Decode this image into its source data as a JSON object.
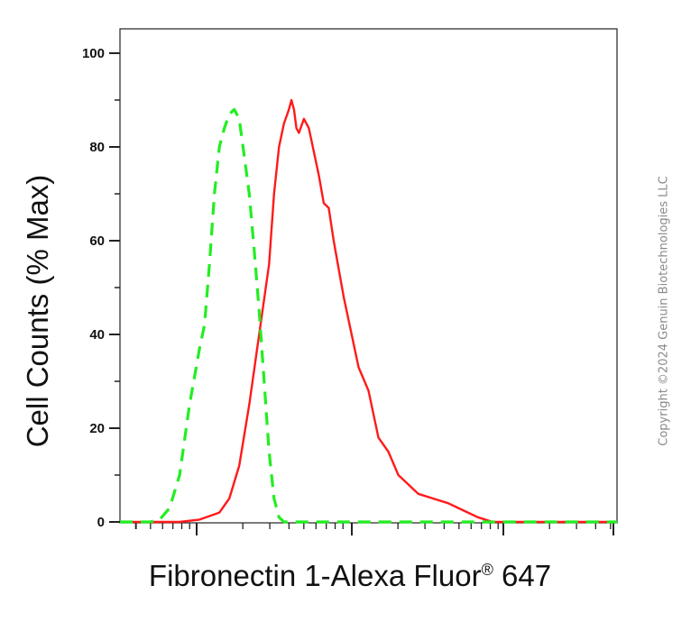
{
  "chart_data": {
    "type": "line",
    "title": "",
    "xlabel": "Fibronectin 1-Alexa Fluor",
    "xlabel_reg": "®",
    "xlabel_suffix": " 647",
    "ylabel": "Cell Counts (% Max)",
    "ylim": [
      0,
      100
    ],
    "y_ticks": [
      0,
      20,
      40,
      60,
      80,
      100
    ],
    "x_scale": "log",
    "x_tick_labels": "none",
    "grid": false,
    "legend": "none",
    "series": [
      {
        "color": "#ff1a1a",
        "style": "solid",
        "points": [
          [
            0.0,
            0
          ],
          [
            0.12,
            0
          ],
          [
            0.16,
            0.5
          ],
          [
            0.2,
            2
          ],
          [
            0.22,
            5
          ],
          [
            0.24,
            12
          ],
          [
            0.26,
            25
          ],
          [
            0.28,
            40
          ],
          [
            0.3,
            55
          ],
          [
            0.31,
            70
          ],
          [
            0.32,
            80
          ],
          [
            0.33,
            85
          ],
          [
            0.34,
            88
          ],
          [
            0.345,
            90
          ],
          [
            0.35,
            88
          ],
          [
            0.355,
            84
          ],
          [
            0.36,
            83
          ],
          [
            0.37,
            86
          ],
          [
            0.38,
            84
          ],
          [
            0.39,
            79
          ],
          [
            0.4,
            74
          ],
          [
            0.41,
            68
          ],
          [
            0.42,
            67
          ],
          [
            0.43,
            60
          ],
          [
            0.45,
            48
          ],
          [
            0.47,
            38
          ],
          [
            0.48,
            33
          ],
          [
            0.5,
            28
          ],
          [
            0.51,
            23
          ],
          [
            0.52,
            18
          ],
          [
            0.54,
            15
          ],
          [
            0.56,
            10
          ],
          [
            0.58,
            8
          ],
          [
            0.6,
            6
          ],
          [
            0.63,
            5
          ],
          [
            0.66,
            4
          ],
          [
            0.69,
            2.5
          ],
          [
            0.72,
            1
          ],
          [
            0.75,
            0
          ],
          [
            1.0,
            0
          ]
        ]
      },
      {
        "color": "#22ee22",
        "style": "dashed",
        "points": [
          [
            0.0,
            0
          ],
          [
            0.06,
            0
          ],
          [
            0.08,
            0.5
          ],
          [
            0.1,
            3
          ],
          [
            0.12,
            10
          ],
          [
            0.14,
            25
          ],
          [
            0.16,
            37
          ],
          [
            0.17,
            42
          ],
          [
            0.18,
            55
          ],
          [
            0.19,
            70
          ],
          [
            0.2,
            80
          ],
          [
            0.21,
            84
          ],
          [
            0.22,
            87
          ],
          [
            0.23,
            88
          ],
          [
            0.24,
            86
          ],
          [
            0.25,
            78
          ],
          [
            0.26,
            70
          ],
          [
            0.27,
            58
          ],
          [
            0.28,
            45
          ],
          [
            0.29,
            30
          ],
          [
            0.3,
            15
          ],
          [
            0.31,
            5
          ],
          [
            0.32,
            1
          ],
          [
            0.33,
            0
          ],
          [
            1.0,
            0
          ]
        ]
      }
    ]
  },
  "axes": {
    "y_tick_labels": [
      "0",
      "20",
      "40",
      "60",
      "80",
      "100"
    ]
  },
  "labels": {
    "y_axis": "Cell Counts (% Max)",
    "x_axis_main": "Fibronectin 1-Alexa Fluor",
    "x_axis_reg": "®",
    "x_axis_suffix": " 647"
  },
  "watermark": {
    "copyright": "Copyright ©2024 Genuin Biotechnologies LLC"
  }
}
